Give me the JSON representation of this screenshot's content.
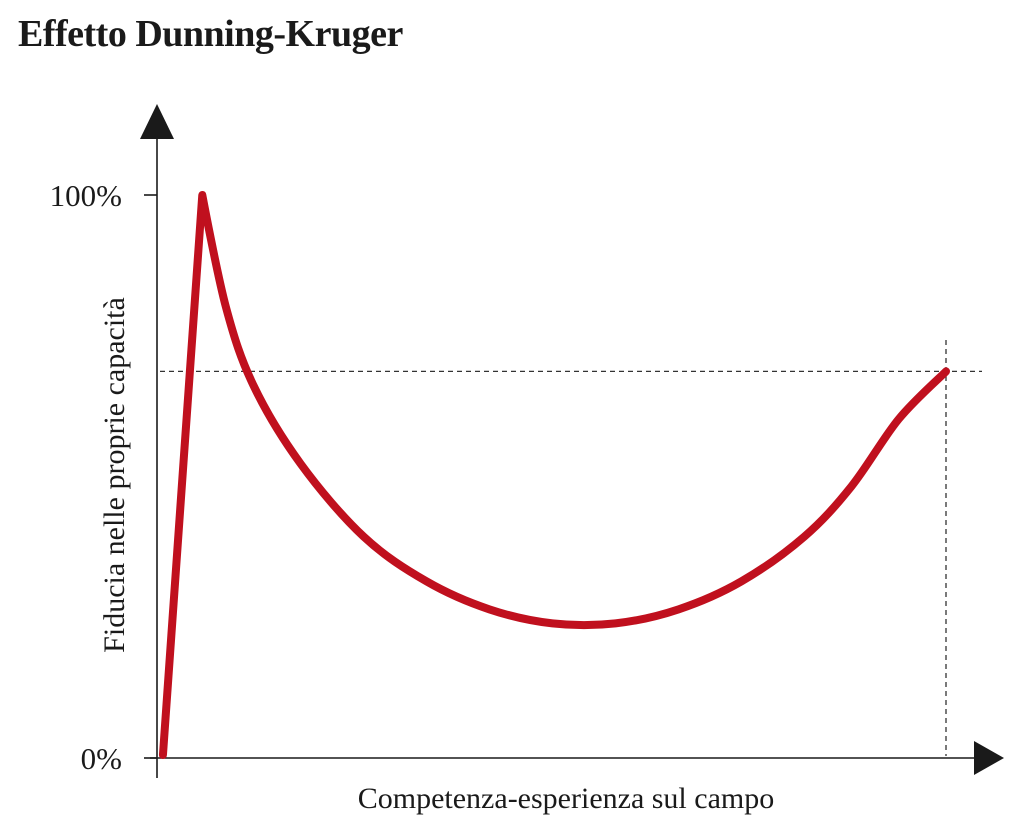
{
  "chart_data": {
    "type": "line",
    "title": "Effetto Dunning-Kruger",
    "xlabel": "Competenza-esperienza sul campo",
    "ylabel": "Fiducia nelle proprie capacità",
    "ylim": [
      0,
      100
    ],
    "xlim": [
      0,
      100
    ],
    "y_ticks": [
      {
        "value": 0,
        "label": "0%"
      },
      {
        "value": 100,
        "label": "100%"
      }
    ],
    "series": [
      {
        "color": "#c0101e",
        "points": [
          [
            0.5,
            0
          ],
          [
            5.5,
            100
          ],
          [
            8.5,
            80
          ],
          [
            12,
            66
          ],
          [
            18,
            52
          ],
          [
            26,
            39
          ],
          [
            34,
            31
          ],
          [
            42,
            26
          ],
          [
            50,
            23.5
          ],
          [
            58,
            23.5
          ],
          [
            66,
            26
          ],
          [
            74,
            31
          ],
          [
            82,
            39
          ],
          [
            88,
            48
          ],
          [
            94,
            60
          ],
          [
            100,
            68.5
          ]
        ]
      }
    ],
    "reference_lines": [
      {
        "type": "horizontal",
        "y": 68.5,
        "style": "dashed"
      },
      {
        "type": "vertical",
        "x": 100,
        "style": "dashed"
      }
    ],
    "grid": false,
    "legend": "none",
    "axis_color": "#1a1a1a"
  }
}
